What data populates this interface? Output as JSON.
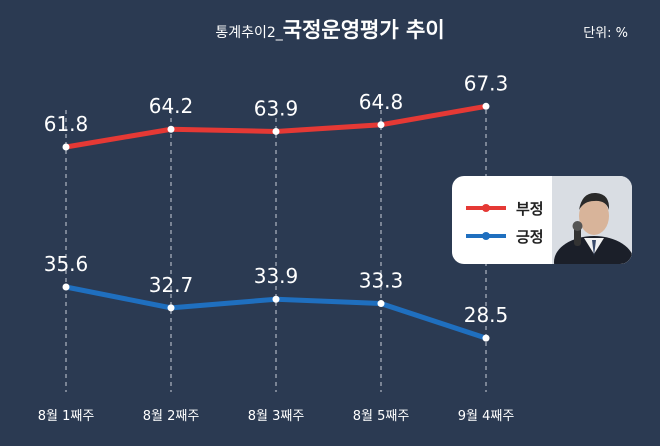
{
  "title_prefix": "통계추이2_",
  "title_main": "국정운영평가 추이",
  "unit": "단위: %",
  "colors": {
    "background": "#2b3a52",
    "negative": "#e53935",
    "positive": "#1f6fbf",
    "grid": "#c8ced8",
    "text": "#ffffff"
  },
  "chart_data": {
    "type": "line",
    "categories": [
      "8월 1째주",
      "8월 2째주",
      "8월 3째주",
      "8월 5째주",
      "9월 4째주"
    ],
    "series": [
      {
        "name": "부정",
        "values": [
          61.8,
          64.2,
          63.9,
          64.8,
          67.3
        ]
      },
      {
        "name": "긍정",
        "values": [
          35.6,
          32.7,
          33.9,
          33.3,
          28.5
        ]
      }
    ],
    "title": "국정운영평가 추이",
    "unit": "단위: %",
    "legend": "right",
    "grid": "vertical-dashed"
  }
}
